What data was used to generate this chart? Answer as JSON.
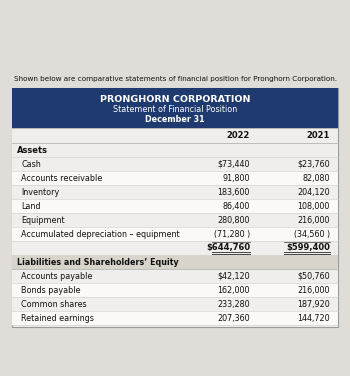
{
  "intro_text": "Shown below are comparative statements of financial position for Pronghorn Corporation.",
  "header_title": "PRONGHORN CORPORATION",
  "header_sub1": "Statement of Financial Position",
  "header_sub2": "December 31",
  "header_bg": "#1f3a6e",
  "header_text_color": "#ffffff",
  "col_headers": [
    "",
    "2022",
    "2021"
  ],
  "assets_section_label": "Assets",
  "assets_rows": [
    [
      "Cash",
      "$73,440",
      "$23,760"
    ],
    [
      "Accounts receivable",
      "91,800",
      "82,080"
    ],
    [
      "Inventory",
      "183,600",
      "204,120"
    ],
    [
      "Land",
      "86,400",
      "108,000"
    ],
    [
      "Equipment",
      "280,800",
      "216,000"
    ],
    [
      "Accumulated depreciation – equipment",
      "(71,280 )",
      "(34,560 )"
    ],
    [
      "",
      "$644,760",
      "$599,400"
    ]
  ],
  "liabilities_section_label": "Liabilities and Shareholders’ Equity",
  "liabilities_rows": [
    [
      "Accounts payable",
      "$42,120",
      "$50,760"
    ],
    [
      "Bonds payable",
      "162,000",
      "216,000"
    ],
    [
      "Common shares",
      "233,280",
      "187,920"
    ],
    [
      "Retained earnings",
      "207,360",
      "144,720"
    ]
  ],
  "page_bg": "#e0ddd8",
  "table_bg": "#f0eeea",
  "table_border": "#999999",
  "row_alt_bg": "#e8e5e0",
  "section_header_bg": "#d8d4cc",
  "text_color": "#111111"
}
